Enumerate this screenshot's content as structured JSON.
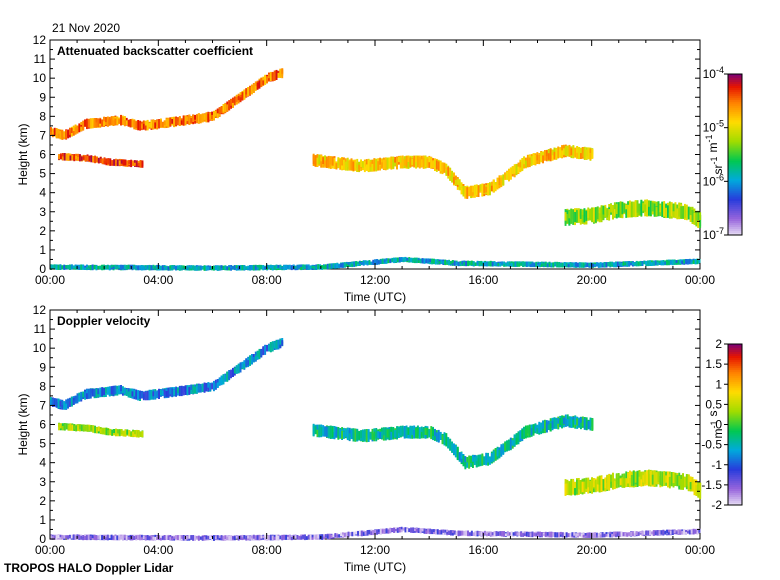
{
  "header": {
    "date": "21 Nov 2020"
  },
  "footer": {
    "instrument": "TROPOS HALO Doppler Lidar"
  },
  "chart_data": [
    {
      "type": "heatmap",
      "title": "Attenuated backscatter coefficient",
      "xlabel": "Time (UTC)",
      "ylabel": "Height (km)",
      "x_ticks": [
        "00:00",
        "04:00",
        "08:00",
        "12:00",
        "16:00",
        "20:00",
        "00:00"
      ],
      "xlim": [
        0,
        24
      ],
      "y_ticks": [
        "0",
        "1",
        "2",
        "3",
        "4",
        "5",
        "6",
        "7",
        "8",
        "9",
        "10",
        "11",
        "12"
      ],
      "ylim": [
        0,
        12
      ],
      "colorbar": {
        "scale": "log",
        "range": [
          1e-07,
          0.0001
        ],
        "tick_base": "10",
        "tick_exps": [
          "-7",
          "-6",
          "-5",
          "-4"
        ],
        "label_base": [
          "sr",
          "m"
        ],
        "label_exp": [
          "-1",
          "-1"
        ]
      },
      "layers": [
        {
          "name": "upper cloud deck",
          "points": [
            [
              0,
              7.2
            ],
            [
              0.5,
              7.0
            ],
            [
              1.3,
              7.6
            ],
            [
              2.6,
              7.8
            ],
            [
              3.3,
              7.5
            ],
            [
              4.0,
              7.6
            ],
            [
              5.0,
              7.8
            ],
            [
              6.0,
              8.0
            ],
            [
              7.0,
              9.0
            ],
            [
              8.0,
              10.0
            ],
            [
              8.6,
              10.3
            ]
          ],
          "thickness": 0.55,
          "value": 3e-05
        },
        {
          "name": "mid layer morning",
          "points": [
            [
              0.3,
              5.9
            ],
            [
              1.4,
              5.8
            ],
            [
              2.2,
              5.6
            ],
            [
              3.4,
              5.5
            ]
          ],
          "thickness": 0.4,
          "value": 4e-05
        },
        {
          "name": "mid layer afternoon",
          "points": [
            [
              9.7,
              5.7
            ],
            [
              11.5,
              5.4
            ],
            [
              13.0,
              5.6
            ],
            [
              14.0,
              5.6
            ],
            [
              14.6,
              5.2
            ],
            [
              15.3,
              4.0
            ],
            [
              16.2,
              4.2
            ],
            [
              17.0,
              5.0
            ],
            [
              17.5,
              5.6
            ],
            [
              19.0,
              6.2
            ],
            [
              20.0,
              6.0
            ]
          ],
          "thickness": 0.7,
          "value": 1.5e-05
        },
        {
          "name": "evening low cloud",
          "points": [
            [
              19.0,
              2.7
            ],
            [
              20.0,
              2.8
            ],
            [
              21.0,
              3.1
            ],
            [
              22.0,
              3.2
            ],
            [
              23.5,
              3.0
            ],
            [
              24.0,
              2.5
            ]
          ],
          "thickness": 0.9,
          "value": 5e-06
        },
        {
          "name": "boundary layer",
          "points": [
            [
              0,
              0.1
            ],
            [
              6,
              0.05
            ],
            [
              10,
              0.1
            ],
            [
              13,
              0.5
            ],
            [
              15,
              0.3
            ],
            [
              20,
              0.2
            ],
            [
              24,
              0.4
            ]
          ],
          "thickness": 0.3,
          "value": 1.2e-06
        }
      ]
    },
    {
      "type": "heatmap",
      "title": "Doppler velocity",
      "xlabel": "Time (UTC)",
      "ylabel": "Height (km)",
      "x_ticks": [
        "00:00",
        "04:00",
        "08:00",
        "12:00",
        "16:00",
        "20:00",
        "00:00"
      ],
      "xlim": [
        0,
        24
      ],
      "y_ticks": [
        "0",
        "1",
        "2",
        "3",
        "4",
        "5",
        "6",
        "7",
        "8",
        "9",
        "10",
        "11",
        "12"
      ],
      "ylim": [
        0,
        12
      ],
      "colorbar": {
        "scale": "linear",
        "range": [
          -2,
          2
        ],
        "ticks": [
          "2",
          "1.5",
          "1",
          "0.5",
          "0",
          "-0.5",
          "-1",
          "-1.5",
          "-2"
        ],
        "label_base": [
          "m",
          "s"
        ],
        "label_exp": [
          "-1"
        ]
      },
      "layers": [
        {
          "name": "upper cloud deck",
          "points": [
            [
              0,
              7.2
            ],
            [
              0.5,
              7.0
            ],
            [
              1.3,
              7.6
            ],
            [
              2.6,
              7.8
            ],
            [
              3.3,
              7.5
            ],
            [
              4.0,
              7.6
            ],
            [
              5.0,
              7.8
            ],
            [
              6.0,
              8.0
            ],
            [
              7.0,
              9.0
            ],
            [
              8.0,
              10.0
            ],
            [
              8.6,
              10.3
            ]
          ],
          "thickness": 0.55,
          "value": -0.8
        },
        {
          "name": "mid layer morning",
          "points": [
            [
              0.3,
              5.9
            ],
            [
              1.4,
              5.8
            ],
            [
              2.2,
              5.6
            ],
            [
              3.4,
              5.5
            ]
          ],
          "thickness": 0.4,
          "value": 0.3
        },
        {
          "name": "mid layer afternoon",
          "points": [
            [
              9.7,
              5.7
            ],
            [
              11.5,
              5.4
            ],
            [
              13.0,
              5.6
            ],
            [
              14.0,
              5.6
            ],
            [
              14.6,
              5.2
            ],
            [
              15.3,
              4.0
            ],
            [
              16.2,
              4.2
            ],
            [
              17.0,
              5.0
            ],
            [
              17.5,
              5.6
            ],
            [
              19.0,
              6.2
            ],
            [
              20.0,
              6.0
            ]
          ],
          "thickness": 0.7,
          "value": -0.4
        },
        {
          "name": "evening low cloud",
          "points": [
            [
              19.0,
              2.7
            ],
            [
              20.0,
              2.8
            ],
            [
              21.0,
              3.1
            ],
            [
              22.0,
              3.2
            ],
            [
              23.5,
              3.0
            ],
            [
              24.0,
              2.5
            ]
          ],
          "thickness": 0.9,
          "value": 0.4
        },
        {
          "name": "boundary layer",
          "points": [
            [
              0,
              0.1
            ],
            [
              6,
              0.05
            ],
            [
              10,
              0.1
            ],
            [
              13,
              0.5
            ],
            [
              15,
              0.3
            ],
            [
              20,
              0.2
            ],
            [
              24,
              0.4
            ]
          ],
          "thickness": 0.3,
          "value": -1.6
        }
      ]
    }
  ]
}
